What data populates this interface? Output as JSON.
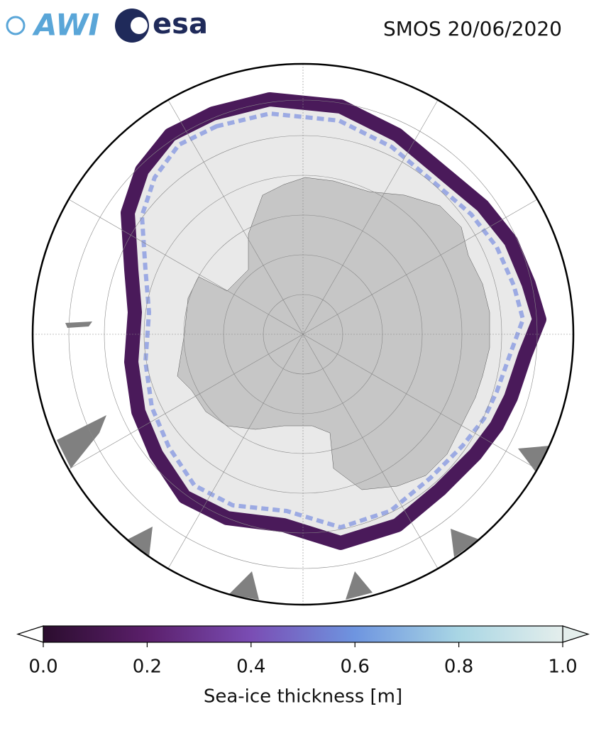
{
  "header": {
    "title": "SMOS 20/06/2020"
  },
  "logos": [
    "AWI",
    "esa"
  ],
  "colorbar": {
    "label": "Sea-ice thickness [m]",
    "lim": [
      0,
      1
    ],
    "ticks": [
      {
        "value": 0,
        "label": "0.0"
      },
      {
        "value": 0.2,
        "label": "0.2"
      },
      {
        "value": 0.4,
        "label": "0.4"
      },
      {
        "value": 0.6,
        "label": "0.6"
      },
      {
        "value": 0.8,
        "label": "0.8"
      },
      {
        "value": 1,
        "label": "1.0"
      }
    ],
    "colors": [
      "#2b0d2e",
      "#5b1f6b",
      "#7a4db4",
      "#6e95e0",
      "#a9d6e4",
      "#e4eeec"
    ]
  }
}
